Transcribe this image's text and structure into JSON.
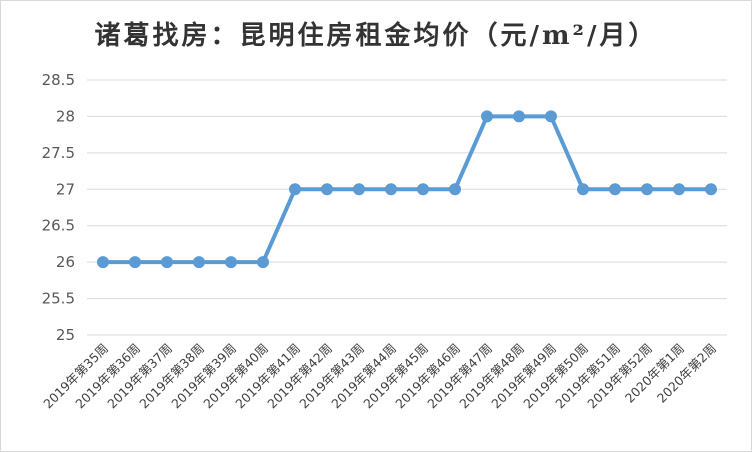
{
  "chart_data": {
    "type": "line",
    "title": "诸葛找房：昆明住房租金均价（元/m²/月）",
    "xlabel": "",
    "ylabel": "",
    "categories": [
      "2019年第35周",
      "2019年第36周",
      "2019年第37周",
      "2019年第38周",
      "2019年第39周",
      "2019年第40周",
      "2019年第41周",
      "2019年第42周",
      "2019年第43周",
      "2019年第44周",
      "2019年第45周",
      "2019年第46周",
      "2019年第47周",
      "2019年第48周",
      "2019年第49周",
      "2019年第50周",
      "2019年第51周",
      "2019年第52周",
      "2020年第1周",
      "2020年第2周"
    ],
    "series": [
      {
        "values": [
          26,
          26,
          26,
          26,
          26,
          26,
          27,
          27,
          27,
          27,
          27,
          27,
          28,
          28,
          28,
          27,
          27,
          27,
          27,
          27
        ]
      }
    ],
    "ylim": [
      25,
      28.5
    ],
    "yticks": [
      25,
      25.5,
      26,
      26.5,
      27,
      27.5,
      28,
      28.5
    ],
    "ytick_labels": [
      "25",
      "25.5",
      "26",
      "26.5",
      "27",
      "27.5",
      "28",
      "28.5"
    ],
    "grid": true,
    "legend": "none",
    "colors": {
      "series": "#5b9bd5",
      "grid": "#d9d9d9"
    }
  }
}
